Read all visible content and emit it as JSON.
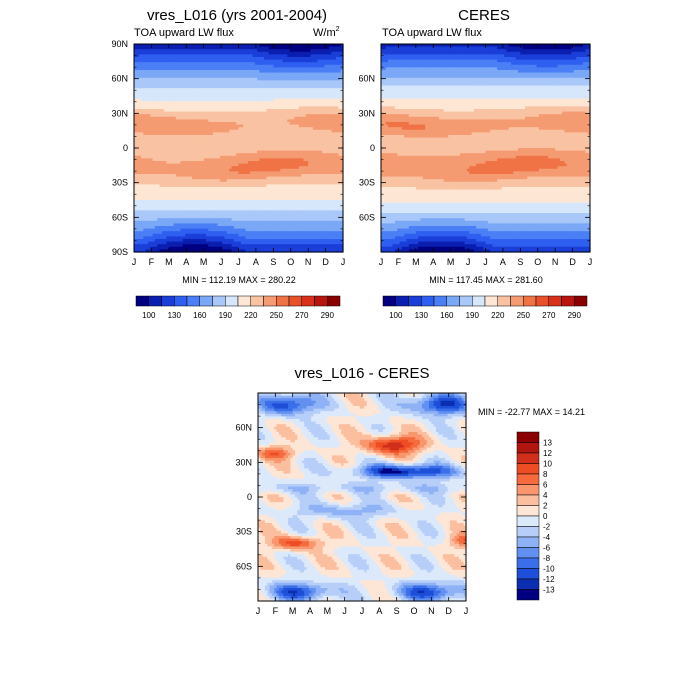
{
  "chart_data": [
    {
      "type": "heatmap",
      "id": "model",
      "title": "vres_L016 (yrs 2001-2004)",
      "subtitle_left": "TOA upward LW flux",
      "subtitle_right": "W/m",
      "units_superscript": "2",
      "x_ticks": [
        "J",
        "F",
        "M",
        "A",
        "M",
        "J",
        "J",
        "A",
        "S",
        "O",
        "N",
        "D",
        "J"
      ],
      "y_ticks": [
        "90N",
        "60N",
        "30N",
        "0",
        "30S",
        "60S",
        "90S"
      ],
      "ylim": [
        -90,
        90
      ],
      "stats": "MIN = 112.19 MAX = 280.22",
      "min": 112.19,
      "max": 280.22,
      "colorbar_labels": [
        "100",
        "130",
        "160",
        "190",
        "220",
        "250",
        "270",
        "290"
      ]
    },
    {
      "type": "heatmap",
      "id": "obs",
      "title": "CERES",
      "subtitle_left": "TOA upward LW flux",
      "x_ticks": [
        "J",
        "F",
        "M",
        "A",
        "M",
        "J",
        "J",
        "A",
        "S",
        "O",
        "N",
        "D",
        "J"
      ],
      "y_ticks": [
        "",
        "60N",
        "30N",
        "0",
        "30S",
        "60S",
        ""
      ],
      "ylim": [
        -90,
        90
      ],
      "stats": "MIN = 117.45 MAX = 281.60",
      "min": 117.45,
      "max": 281.6,
      "colorbar_labels": [
        "100",
        "130",
        "160",
        "190",
        "220",
        "250",
        "270",
        "290"
      ]
    },
    {
      "type": "heatmap",
      "id": "diff",
      "title": "vres_L016 - CERES",
      "x_ticks": [
        "J",
        "F",
        "M",
        "A",
        "M",
        "J",
        "J",
        "A",
        "S",
        "O",
        "N",
        "D",
        "J"
      ],
      "y_ticks": [
        "60N",
        "30N",
        "0",
        "30S",
        "60S"
      ],
      "stats": "MIN = -22.77 MAX =  14.21",
      "min": -22.77,
      "max": 14.21,
      "colorbar_labels": [
        "13",
        "12",
        "10",
        "8",
        "6",
        "4",
        "2",
        "0",
        "-2",
        "-4",
        "-6",
        "-8",
        "-10",
        "-12",
        "-13"
      ]
    }
  ],
  "colors": {
    "lw_scale": [
      "#000080",
      "#0a1fb0",
      "#1b3ed8",
      "#2f5ff0",
      "#4a7ff5",
      "#7aa8f7",
      "#a9c8f9",
      "#d6e6fb",
      "#fde7d4",
      "#f9c3a3",
      "#f59b72",
      "#f07346",
      "#e8512a",
      "#d8301b",
      "#b8150f",
      "#8a0000"
    ],
    "diff_scale": [
      "#8a0000",
      "#b0160e",
      "#d0301b",
      "#ee4d24",
      "#f56b3e",
      "#f9966e",
      "#fbbf9f",
      "#fde6d6",
      "#dce9fb",
      "#b7cff8",
      "#8eb2f5",
      "#6290f1",
      "#3b6fe9",
      "#1e4fd8",
      "#0a2fb0",
      "#000080"
    ]
  }
}
